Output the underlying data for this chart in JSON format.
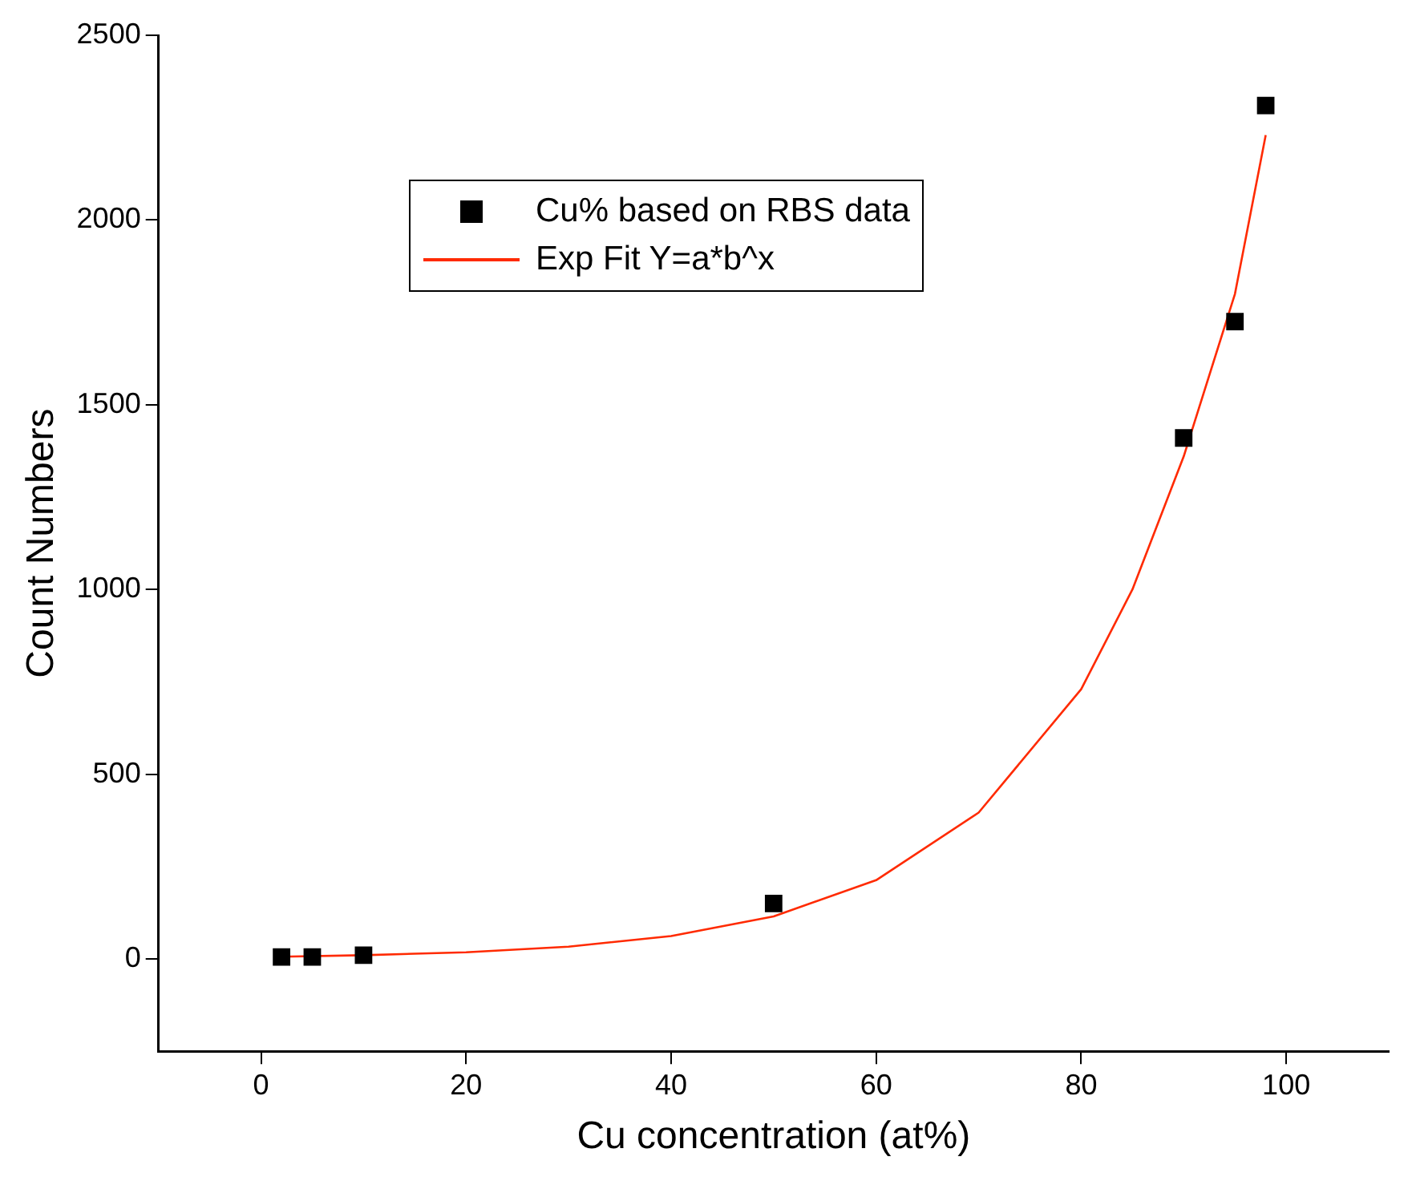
{
  "chart_data": {
    "type": "scatter",
    "xlabel": "Cu concentration (at%)",
    "ylabel": "Count Numbers",
    "xlim": [
      -10,
      110
    ],
    "xticks": [
      0,
      20,
      40,
      60,
      80,
      100
    ],
    "ylim": [
      -250,
      2500
    ],
    "yticks": [
      0,
      500,
      1000,
      1500,
      2000,
      2500
    ],
    "grid": false,
    "legend": "top left",
    "marker": "square",
    "series": [
      {
        "name": "Cu% based on RBS data",
        "color": "#000000",
        "type": "scatter",
        "x": [
          2,
          5,
          10,
          50,
          90,
          95,
          98
        ],
        "values": [
          5,
          5,
          10,
          150,
          1410,
          1725,
          2310
        ]
      },
      {
        "name": "Exp Fit Y=a*b^x",
        "color": "#ff2a00",
        "type": "line",
        "marker": "none",
        "line_style": "solid",
        "x": [
          2,
          10,
          20,
          30,
          40,
          50,
          60,
          70,
          80,
          85,
          90,
          95,
          98
        ],
        "values": [
          6,
          10,
          18,
          33,
          62,
          115,
          213,
          396,
          730,
          1000,
          1360,
          1800,
          2230
        ]
      }
    ]
  }
}
